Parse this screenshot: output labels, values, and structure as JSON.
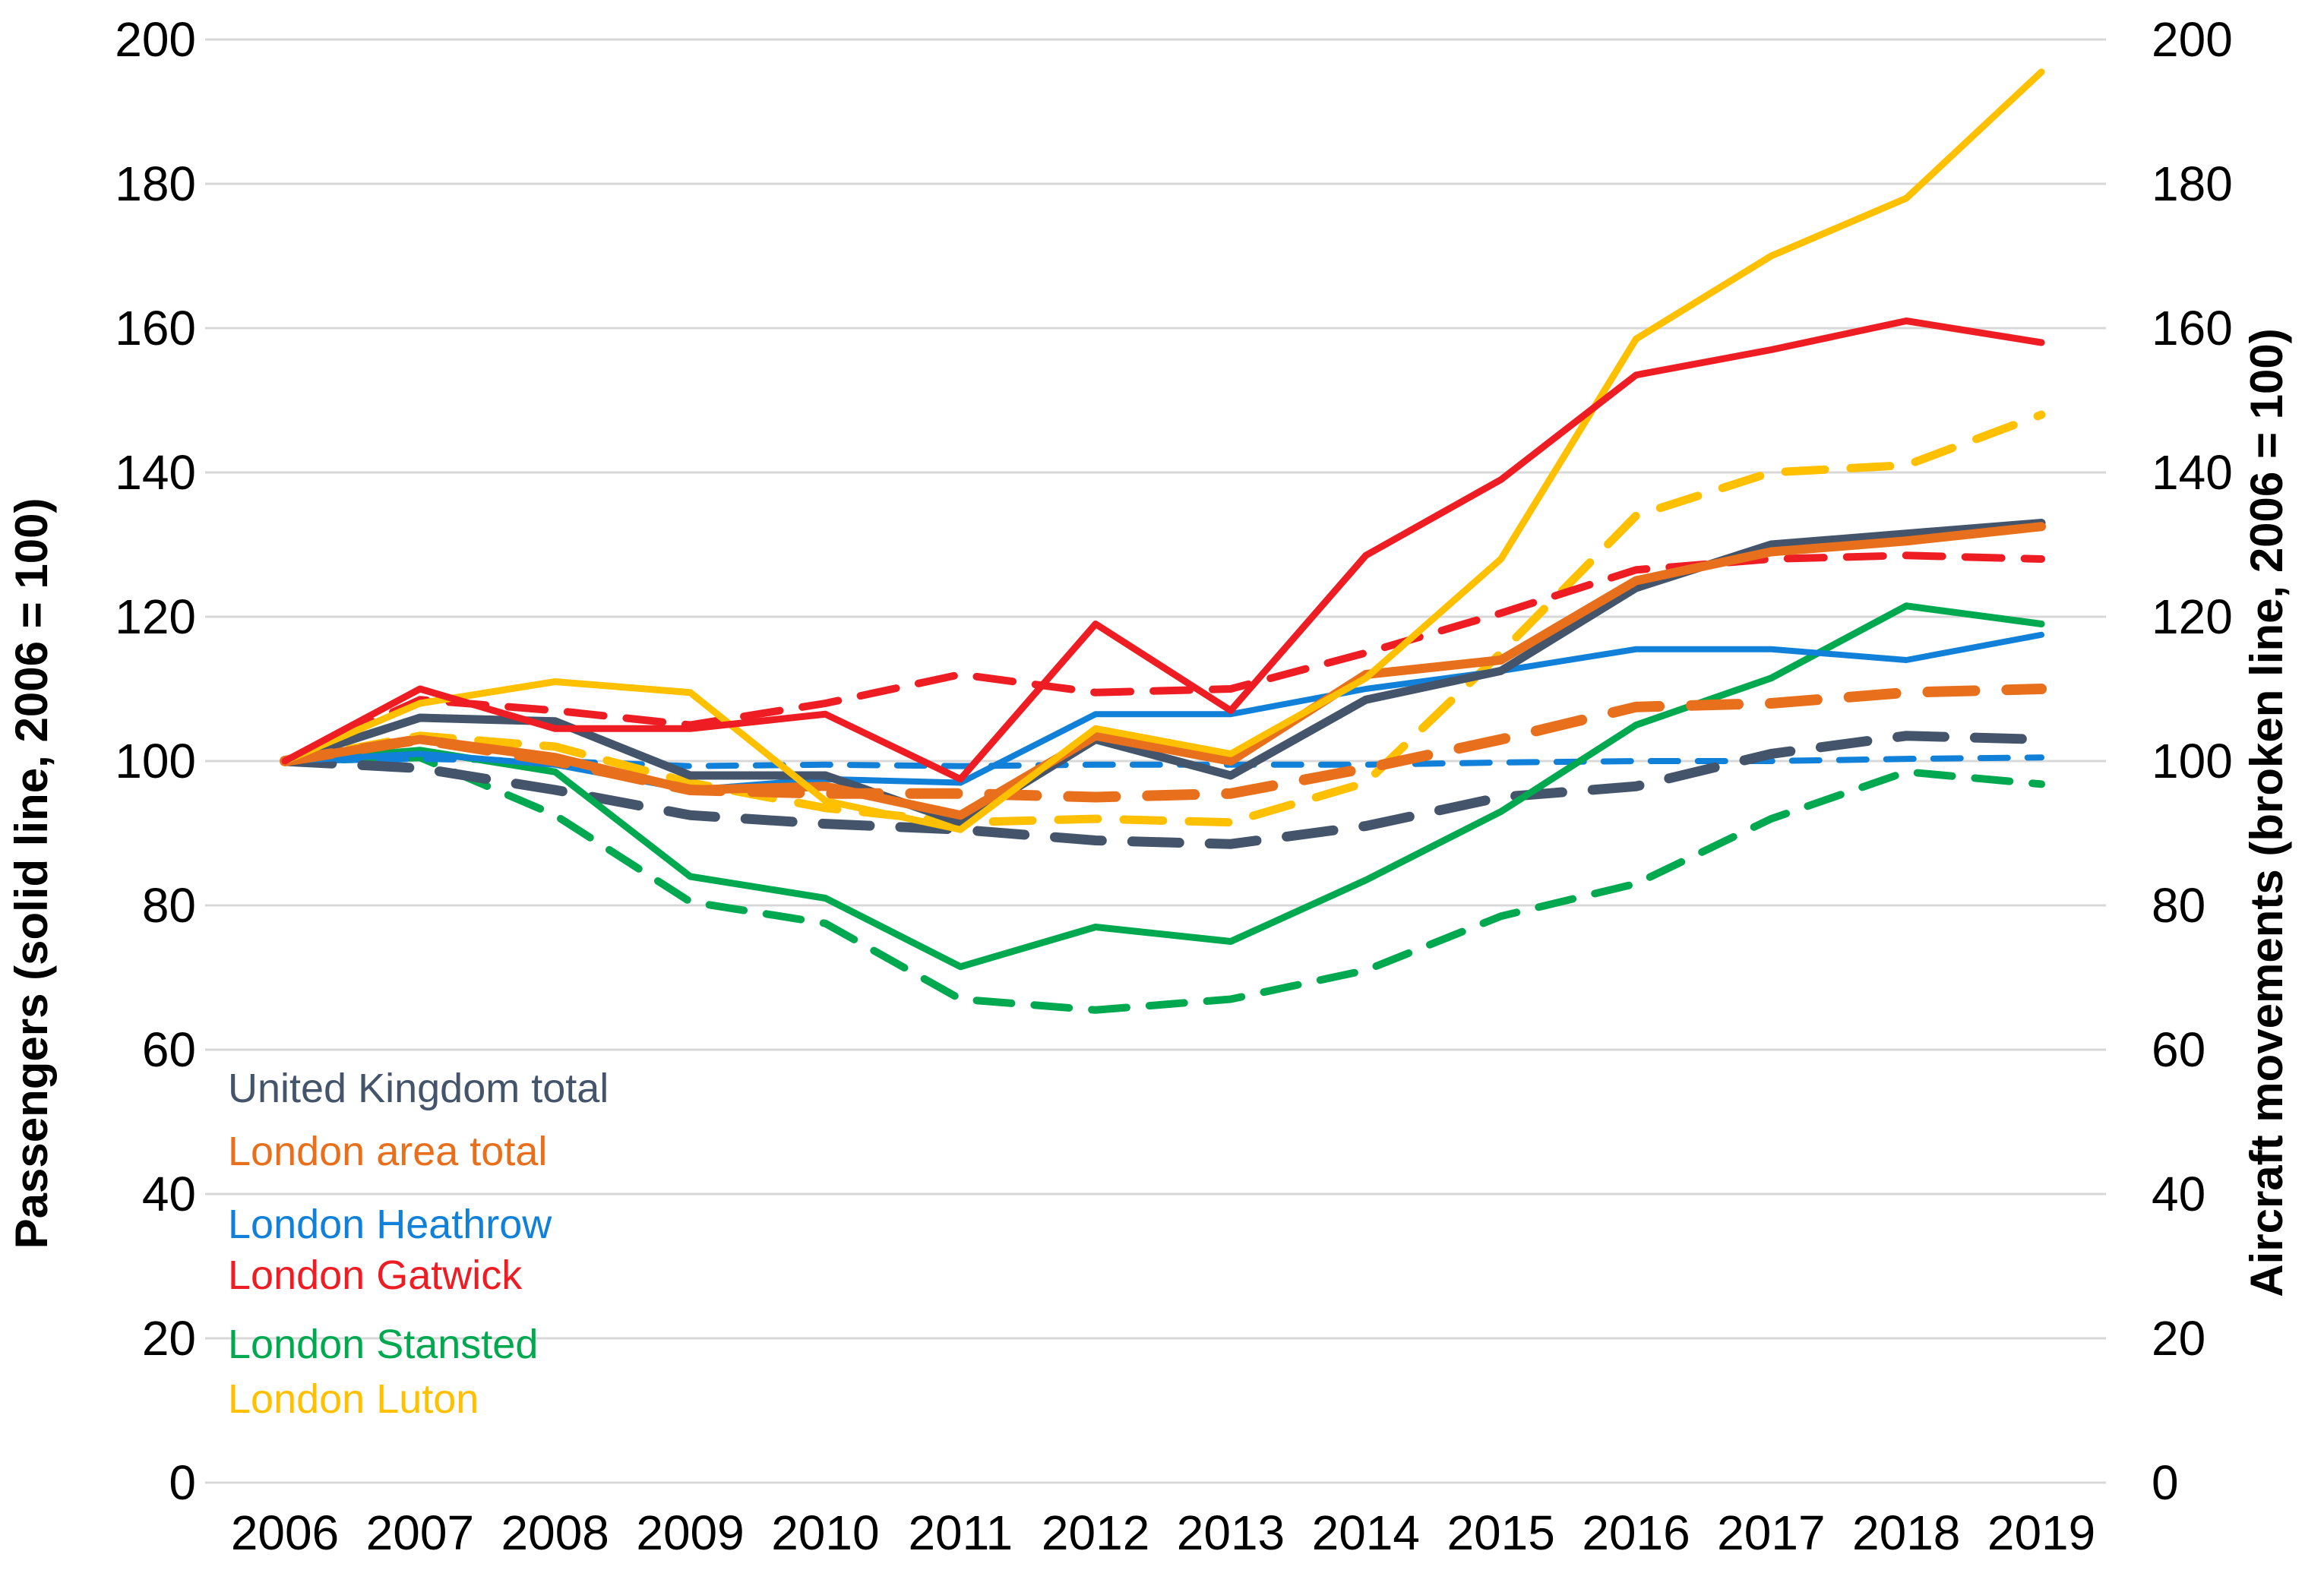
{
  "chart_data": {
    "type": "line",
    "title": "",
    "x_categories": [
      "2006",
      "2007",
      "2008",
      "2009",
      "2010",
      "2011",
      "2012",
      "2013",
      "2014",
      "2015",
      "2016",
      "2017",
      "2018",
      "2019"
    ],
    "ylabel_left": "Passengers (solid line, 2006 = 100)",
    "ylabel_right": "Aircraft movements (broken line, 2006 = 100)",
    "ylim": [
      0,
      200
    ],
    "yticks": [
      0,
      20,
      40,
      60,
      80,
      100,
      120,
      140,
      160,
      180,
      200
    ],
    "grid": "horizontal-only",
    "gridline_color": "#D8D8D8",
    "text_color": "#000000",
    "legend_position": "inside-lower-left",
    "series": [
      {
        "name": "London Stansted - aircraft movements",
        "airport": "London Stansted",
        "metric": "aircraft-movements",
        "line_style": "dashed",
        "color": "#00A94F",
        "width": 10,
        "dash": "46 30",
        "values": [
          100,
          100.5,
          92.5,
          80.5,
          77.5,
          67,
          65.5,
          67,
          71,
          78.5,
          83,
          92,
          98.5,
          96.8
        ]
      },
      {
        "name": "London Heathrow - aircraft movements",
        "airport": "London Heathrow",
        "metric": "aircraft-movements",
        "line_style": "dashed",
        "color": "#1080D8",
        "width": 8,
        "dash": "36 26",
        "values": [
          100,
          100.3,
          100,
          99.3,
          99.5,
          99.3,
          99.5,
          99.5,
          99.5,
          99.8,
          100,
          100,
          100.3,
          100.5
        ]
      },
      {
        "name": "United Kingdom total - aircraft movements",
        "airport": "United Kingdom total",
        "metric": "aircraft-movements",
        "line_style": "dashed",
        "color": "#44546A",
        "width": 13,
        "dash": "62 40",
        "values": [
          100,
          99,
          96,
          92.5,
          91.3,
          90.5,
          89,
          88.5,
          91,
          95,
          96.5,
          101,
          103.5,
          103
        ]
      },
      {
        "name": "London Luton - aircraft movements",
        "airport": "London Luton",
        "metric": "aircraft-movements",
        "line_style": "dashed",
        "color": "#FFC000",
        "width": 11,
        "dash": "52 34",
        "values": [
          100,
          103.5,
          102,
          97,
          93.5,
          91.5,
          92,
          91.5,
          97,
          115,
          134,
          140,
          141,
          148
        ]
      },
      {
        "name": "London Gatwick - aircraft movements",
        "airport": "London Gatwick",
        "metric": "aircraft-movements",
        "line_style": "dashed",
        "color": "#EE1D23",
        "width": 10,
        "dash": "48 30",
        "values": [
          100,
          108.5,
          107,
          105,
          108,
          112,
          109.5,
          110,
          115,
          120.5,
          126.5,
          128,
          128.5,
          128
        ]
      },
      {
        "name": "London Stansted - passengers",
        "airport": "London Stansted",
        "metric": "passengers",
        "line_style": "solid",
        "color": "#00A94F",
        "width": 9,
        "dash": null,
        "values": [
          100,
          101.5,
          98.5,
          84,
          81,
          71.5,
          77,
          75,
          83.5,
          93,
          105,
          111.5,
          121.5,
          119
        ]
      },
      {
        "name": "London Heathrow - passengers",
        "airport": "London Heathrow",
        "metric": "passengers",
        "line_style": "solid",
        "color": "#1080D8",
        "width": 8,
        "dash": null,
        "values": [
          100,
          101,
          99.5,
          96,
          97.5,
          97,
          106.5,
          106.5,
          110,
          112.5,
          115.5,
          115.5,
          114,
          117.5
        ]
      },
      {
        "name": "United Kingdom total - passengers",
        "airport": "United Kingdom total",
        "metric": "passengers",
        "line_style": "solid",
        "color": "#44546A",
        "width": 11,
        "dash": null,
        "values": [
          100,
          106,
          105.5,
          98,
          98,
          91.5,
          103,
          98,
          108.5,
          112.5,
          124,
          130,
          131.5,
          133
        ]
      },
      {
        "name": "London area total - passengers",
        "airport": "London area total",
        "metric": "passengers",
        "line_style": "solid",
        "color": "#E8701C",
        "width": 12,
        "dash": null,
        "values": [
          100,
          103,
          100.5,
          96,
          96.5,
          92.5,
          103.5,
          100,
          112,
          114,
          125,
          129,
          130.5,
          132.5
        ]
      },
      {
        "name": "London area total - aircraft movements",
        "airport": "London area total",
        "metric": "aircraft-movements",
        "line_style": "dashed",
        "color": "#E8701C",
        "width": 14,
        "dash": "62 42",
        "values": [
          100,
          103,
          100,
          96,
          95.5,
          95.5,
          95,
          95.5,
          99,
          103,
          107.5,
          108,
          109.5,
          110
        ]
      },
      {
        "name": "London Luton - passengers",
        "airport": "London Luton",
        "metric": "passengers",
        "line_style": "solid",
        "color": "#FFC000",
        "width": 9,
        "dash": null,
        "values": [
          100,
          108,
          111,
          109.5,
          94.5,
          90.5,
          104.5,
          101,
          111.5,
          128,
          158.5,
          170,
          178,
          195.5
        ]
      },
      {
        "name": "London Gatwick - passengers",
        "airport": "London Gatwick",
        "metric": "passengers",
        "line_style": "solid",
        "color": "#EE1D23",
        "width": 9,
        "dash": null,
        "values": [
          100,
          110,
          104.5,
          104.5,
          106.5,
          97.5,
          119,
          107,
          128.5,
          139,
          153.5,
          157,
          161,
          158
        ]
      }
    ]
  },
  "legend": {
    "items": [
      {
        "label": "United Kingdom total",
        "color": "#44546A"
      },
      {
        "label": "London area total",
        "color": "#E8701C"
      },
      {
        "label": "London Heathrow",
        "color": "#1080D8"
      },
      {
        "label": "London Gatwick",
        "color": "#EE1D23"
      },
      {
        "label": "London Stansted",
        "color": "#00A94F"
      },
      {
        "label": "London Luton",
        "color": "#FFC000"
      }
    ]
  }
}
